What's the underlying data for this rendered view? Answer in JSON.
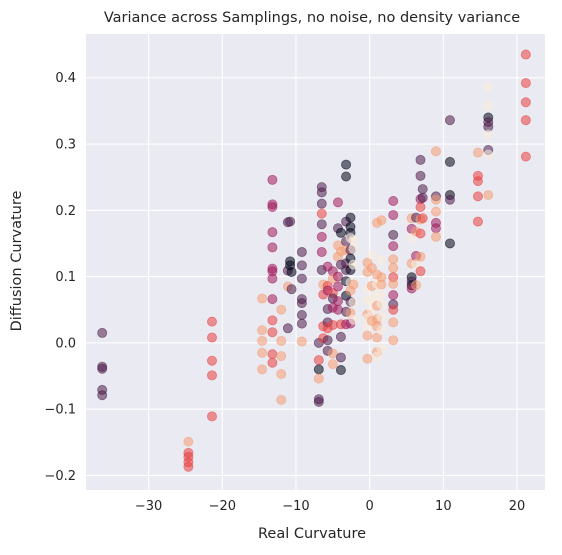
{
  "chart_data": {
    "type": "scatter",
    "title": "Variance across Samplings, no noise, no density variance",
    "xlabel": "Real Curvature",
    "ylabel": "Diffusion Curvature",
    "xlim": [
      -38.5,
      23.8
    ],
    "ylim": [
      -0.222,
      0.466
    ],
    "xticks": [
      -30,
      -20,
      -10,
      0,
      10,
      20
    ],
    "yticks": [
      -0.2,
      -0.1,
      0.0,
      0.1,
      0.2,
      0.3,
      0.4
    ],
    "xtick_labels": [
      "−30",
      "−20",
      "−10",
      "0",
      "10",
      "20"
    ],
    "ytick_labels": [
      "−0.2",
      "−0.1",
      "0.0",
      "0.1",
      "0.2",
      "0.3",
      "0.4"
    ],
    "grid": true,
    "background": "#eaeaf2",
    "grid_color": "#ffffff",
    "marker_opacity": 0.55,
    "palette": [
      "#03051a",
      "#4c1d4b",
      "#a11a5b",
      "#e83f3f",
      "#f69c73",
      "#faebdd"
    ],
    "points": [
      {
        "x": -36.3,
        "y": 0.015,
        "c": 1
      },
      {
        "x": -36.3,
        "y": -0.036,
        "c": 1
      },
      {
        "x": -36.3,
        "y": -0.039,
        "c": 1
      },
      {
        "x": -36.3,
        "y": -0.071,
        "c": 1
      },
      {
        "x": -36.3,
        "y": -0.079,
        "c": 1
      },
      {
        "x": -24.6,
        "y": -0.149,
        "c": 4
      },
      {
        "x": -24.6,
        "y": -0.166,
        "c": 3
      },
      {
        "x": -24.6,
        "y": -0.172,
        "c": 3
      },
      {
        "x": -24.6,
        "y": -0.18,
        "c": 3
      },
      {
        "x": -24.6,
        "y": -0.187,
        "c": 3
      },
      {
        "x": -21.4,
        "y": 0.032,
        "c": 3
      },
      {
        "x": -21.4,
        "y": 0.008,
        "c": 3
      },
      {
        "x": -21.4,
        "y": -0.027,
        "c": 3
      },
      {
        "x": -21.4,
        "y": -0.049,
        "c": 3
      },
      {
        "x": -21.4,
        "y": -0.111,
        "c": 3
      },
      {
        "x": -14.6,
        "y": 0.067,
        "c": 4
      },
      {
        "x": -14.6,
        "y": 0.019,
        "c": 4
      },
      {
        "x": -14.6,
        "y": 0.003,
        "c": 4
      },
      {
        "x": -14.6,
        "y": -0.015,
        "c": 4
      },
      {
        "x": -14.6,
        "y": -0.04,
        "c": 4
      },
      {
        "x": -13.2,
        "y": 0.246,
        "c": 2
      },
      {
        "x": -13.2,
        "y": 0.209,
        "c": 2
      },
      {
        "x": -13.2,
        "y": 0.205,
        "c": 2
      },
      {
        "x": -13.2,
        "y": 0.167,
        "c": 2
      },
      {
        "x": -13.2,
        "y": 0.144,
        "c": 2
      },
      {
        "x": -13.2,
        "y": 0.112,
        "c": 2
      },
      {
        "x": -13.2,
        "y": 0.108,
        "c": 2
      },
      {
        "x": -13.2,
        "y": 0.097,
        "c": 2
      },
      {
        "x": -13.2,
        "y": 0.066,
        "c": 2
      },
      {
        "x": -13.2,
        "y": 0.034,
        "c": 3
      },
      {
        "x": -13.2,
        "y": 0.016,
        "c": 3
      },
      {
        "x": -13.2,
        "y": -0.017,
        "c": 3
      },
      {
        "x": -13.2,
        "y": -0.03,
        "c": 3
      },
      {
        "x": -12.0,
        "y": 0.05,
        "c": 4
      },
      {
        "x": -12.0,
        "y": 0.003,
        "c": 4
      },
      {
        "x": -12.0,
        "y": -0.02,
        "c": 4
      },
      {
        "x": -12.0,
        "y": -0.047,
        "c": 4
      },
      {
        "x": -12.0,
        "y": -0.086,
        "c": 4
      },
      {
        "x": -11.1,
        "y": 0.182,
        "c": 1
      },
      {
        "x": -11.1,
        "y": 0.109,
        "c": 1
      },
      {
        "x": -11.1,
        "y": 0.085,
        "c": 4
      },
      {
        "x": -11.1,
        "y": 0.022,
        "c": 1
      },
      {
        "x": -10.8,
        "y": 0.183,
        "c": 1
      },
      {
        "x": -10.8,
        "y": 0.123,
        "c": 0
      },
      {
        "x": -10.8,
        "y": 0.117,
        "c": 0
      },
      {
        "x": -10.6,
        "y": 0.107,
        "c": 0
      },
      {
        "x": -10.6,
        "y": 0.081,
        "c": 1
      },
      {
        "x": -9.2,
        "y": 0.137,
        "c": 1
      },
      {
        "x": -9.2,
        "y": 0.117,
        "c": 1
      },
      {
        "x": -9.2,
        "y": 0.097,
        "c": 1
      },
      {
        "x": -9.2,
        "y": 0.066,
        "c": 1
      },
      {
        "x": -9.2,
        "y": 0.06,
        "c": 1
      },
      {
        "x": -9.2,
        "y": 0.042,
        "c": 1
      },
      {
        "x": -9.2,
        "y": 0.029,
        "c": 1
      },
      {
        "x": -9.2,
        "y": 0.002,
        "c": 4
      },
      {
        "x": -6.9,
        "y": 0.0,
        "c": 1
      },
      {
        "x": -6.9,
        "y": -0.026,
        "c": 3
      },
      {
        "x": -6.9,
        "y": -0.04,
        "c": 0
      },
      {
        "x": -6.9,
        "y": -0.054,
        "c": 4
      },
      {
        "x": -6.9,
        "y": -0.085,
        "c": 1
      },
      {
        "x": -6.9,
        "y": -0.089,
        "c": 1
      },
      {
        "x": -6.5,
        "y": 0.235,
        "c": 1
      },
      {
        "x": -6.5,
        "y": 0.227,
        "c": 1
      },
      {
        "x": -6.5,
        "y": 0.21,
        "c": 1
      },
      {
        "x": -6.5,
        "y": 0.195,
        "c": 3
      },
      {
        "x": -6.5,
        "y": 0.179,
        "c": 1
      },
      {
        "x": -6.5,
        "y": 0.16,
        "c": 2
      },
      {
        "x": -6.5,
        "y": 0.137,
        "c": 2
      },
      {
        "x": -6.5,
        "y": 0.11,
        "c": 1
      },
      {
        "x": -6.3,
        "y": 0.088,
        "c": 4
      },
      {
        "x": -6.3,
        "y": 0.073,
        "c": 3
      },
      {
        "x": -6.3,
        "y": 0.025,
        "c": 3
      },
      {
        "x": -6.3,
        "y": 0.007,
        "c": 3
      },
      {
        "x": -5.7,
        "y": 0.115,
        "c": 2
      },
      {
        "x": -5.7,
        "y": 0.086,
        "c": 3
      },
      {
        "x": -5.7,
        "y": 0.079,
        "c": 2
      },
      {
        "x": -5.7,
        "y": 0.051,
        "c": 1
      },
      {
        "x": -5.7,
        "y": 0.031,
        "c": 1
      },
      {
        "x": -5.7,
        "y": 0.022,
        "c": 3
      },
      {
        "x": -5.7,
        "y": 0.004,
        "c": 1
      },
      {
        "x": -5.7,
        "y": -0.012,
        "c": 1
      },
      {
        "x": -5.0,
        "y": 0.108,
        "c": 2
      },
      {
        "x": -5.0,
        "y": 0.097,
        "c": 4
      },
      {
        "x": -5.0,
        "y": 0.075,
        "c": 3
      },
      {
        "x": -5.0,
        "y": 0.067,
        "c": 1
      },
      {
        "x": -5.0,
        "y": 0.053,
        "c": 2
      },
      {
        "x": -5.0,
        "y": 0.027,
        "c": 3
      },
      {
        "x": -5.0,
        "y": -0.016,
        "c": 4
      },
      {
        "x": -5.0,
        "y": -0.032,
        "c": 4
      },
      {
        "x": -4.3,
        "y": 0.212,
        "c": 2
      },
      {
        "x": -4.3,
        "y": 0.173,
        "c": 1
      },
      {
        "x": -4.3,
        "y": 0.147,
        "c": 4
      },
      {
        "x": -4.3,
        "y": 0.13,
        "c": 4
      },
      {
        "x": -4.3,
        "y": 0.1,
        "c": 2
      },
      {
        "x": -4.3,
        "y": 0.085,
        "c": 2
      },
      {
        "x": -4.3,
        "y": 0.063,
        "c": 2
      },
      {
        "x": -4.3,
        "y": 0.05,
        "c": 2
      },
      {
        "x": -3.9,
        "y": 0.166,
        "c": 0
      },
      {
        "x": -3.9,
        "y": 0.138,
        "c": 4
      },
      {
        "x": -3.9,
        "y": 0.118,
        "c": 1
      },
      {
        "x": -3.9,
        "y": 0.028,
        "c": 3
      },
      {
        "x": -3.9,
        "y": 0.009,
        "c": 1
      },
      {
        "x": -3.9,
        "y": -0.022,
        "c": 1
      },
      {
        "x": -3.9,
        "y": -0.041,
        "c": 0
      },
      {
        "x": -3.2,
        "y": 0.269,
        "c": 0
      },
      {
        "x": -3.2,
        "y": 0.251,
        "c": 0
      },
      {
        "x": -3.2,
        "y": 0.183,
        "c": 1
      },
      {
        "x": -3.2,
        "y": 0.153,
        "c": 1
      },
      {
        "x": -3.2,
        "y": 0.14,
        "c": 4
      },
      {
        "x": -3.2,
        "y": 0.12,
        "c": 1
      },
      {
        "x": -3.2,
        "y": 0.11,
        "c": 1
      },
      {
        "x": -3.2,
        "y": 0.093,
        "c": 0
      },
      {
        "x": -3.2,
        "y": 0.071,
        "c": 0
      },
      {
        "x": -3.2,
        "y": 0.047,
        "c": 1
      },
      {
        "x": -3.2,
        "y": 0.028,
        "c": 2
      },
      {
        "x": -2.6,
        "y": 0.189,
        "c": 0
      },
      {
        "x": -2.6,
        "y": 0.175,
        "c": 0
      },
      {
        "x": -2.6,
        "y": 0.166,
        "c": 0
      },
      {
        "x": -2.6,
        "y": 0.158,
        "c": 5
      },
      {
        "x": -2.6,
        "y": 0.14,
        "c": 1
      },
      {
        "x": -2.6,
        "y": 0.127,
        "c": 0
      },
      {
        "x": -2.6,
        "y": 0.11,
        "c": 0
      },
      {
        "x": -2.6,
        "y": 0.091,
        "c": 5
      },
      {
        "x": -2.6,
        "y": 0.079,
        "c": 4
      },
      {
        "x": -2.6,
        "y": 0.062,
        "c": 1
      },
      {
        "x": -2.6,
        "y": 0.045,
        "c": 4
      },
      {
        "x": -2.6,
        "y": 0.029,
        "c": 2
      },
      {
        "x": -2.2,
        "y": 0.155,
        "c": 5
      },
      {
        "x": -2.2,
        "y": 0.142,
        "c": 5
      },
      {
        "x": -2.2,
        "y": 0.118,
        "c": 5
      },
      {
        "x": -2.2,
        "y": 0.088,
        "c": 4
      },
      {
        "x": -2.2,
        "y": 0.061,
        "c": 5
      },
      {
        "x": -2.2,
        "y": 0.035,
        "c": 5
      },
      {
        "x": -0.3,
        "y": 0.121,
        "c": 4
      },
      {
        "x": -0.3,
        "y": 0.107,
        "c": 4
      },
      {
        "x": -0.3,
        "y": 0.081,
        "c": 5
      },
      {
        "x": -0.3,
        "y": 0.064,
        "c": 5
      },
      {
        "x": -0.3,
        "y": 0.043,
        "c": 4
      },
      {
        "x": -0.3,
        "y": 0.037,
        "c": 5
      },
      {
        "x": -0.3,
        "y": 0.025,
        "c": 5
      },
      {
        "x": -0.3,
        "y": 0.011,
        "c": 4
      },
      {
        "x": -0.3,
        "y": -0.024,
        "c": 4
      },
      {
        "x": 0.3,
        "y": 0.133,
        "c": 5
      },
      {
        "x": 0.3,
        "y": 0.113,
        "c": 4
      },
      {
        "x": 0.3,
        "y": 0.086,
        "c": 4
      },
      {
        "x": 0.3,
        "y": 0.066,
        "c": 5
      },
      {
        "x": 0.3,
        "y": 0.05,
        "c": 5
      },
      {
        "x": 0.3,
        "y": 0.033,
        "c": 4
      },
      {
        "x": 1.0,
        "y": 0.181,
        "c": 4
      },
      {
        "x": 1.0,
        "y": 0.103,
        "c": 4
      },
      {
        "x": 1.0,
        "y": 0.089,
        "c": 5
      },
      {
        "x": 1.0,
        "y": 0.072,
        "c": 5
      },
      {
        "x": 1.0,
        "y": 0.056,
        "c": 4
      },
      {
        "x": 1.0,
        "y": 0.036,
        "c": 4
      },
      {
        "x": 1.0,
        "y": 0.025,
        "c": 4
      },
      {
        "x": 1.0,
        "y": 0.008,
        "c": 4
      },
      {
        "x": 1.0,
        "y": -0.014,
        "c": 4
      },
      {
        "x": 1.0,
        "y": -0.021,
        "c": 5
      },
      {
        "x": 1.6,
        "y": 0.185,
        "c": 4
      },
      {
        "x": 1.6,
        "y": 0.125,
        "c": 5
      },
      {
        "x": 1.6,
        "y": 0.099,
        "c": 4
      },
      {
        "x": 1.6,
        "y": 0.088,
        "c": 4
      },
      {
        "x": 1.6,
        "y": 0.074,
        "c": 5
      },
      {
        "x": 1.6,
        "y": 0.059,
        "c": 5
      },
      {
        "x": 1.6,
        "y": 0.04,
        "c": 5
      },
      {
        "x": 1.6,
        "y": 0.019,
        "c": 5
      },
      {
        "x": 1.6,
        "y": -0.008,
        "c": 5
      },
      {
        "x": 3.2,
        "y": 0.214,
        "c": 2
      },
      {
        "x": 3.2,
        "y": 0.193,
        "c": 2
      },
      {
        "x": 3.2,
        "y": 0.163,
        "c": 1
      },
      {
        "x": 3.2,
        "y": 0.146,
        "c": 2
      },
      {
        "x": 3.2,
        "y": 0.126,
        "c": 4
      },
      {
        "x": 3.2,
        "y": 0.113,
        "c": 4
      },
      {
        "x": 3.2,
        "y": 0.099,
        "c": 3
      },
      {
        "x": 3.2,
        "y": 0.089,
        "c": 4
      },
      {
        "x": 3.2,
        "y": 0.072,
        "c": 2
      },
      {
        "x": 3.2,
        "y": 0.058,
        "c": 1
      },
      {
        "x": 3.2,
        "y": 0.05,
        "c": 3
      },
      {
        "x": 3.2,
        "y": 0.031,
        "c": 4
      },
      {
        "x": 3.2,
        "y": 0.004,
        "c": 4
      },
      {
        "x": 5.7,
        "y": 0.188,
        "c": 4
      },
      {
        "x": 5.7,
        "y": 0.172,
        "c": 2
      },
      {
        "x": 5.7,
        "y": 0.158,
        "c": 5
      },
      {
        "x": 5.7,
        "y": 0.12,
        "c": 4
      },
      {
        "x": 5.7,
        "y": 0.099,
        "c": 0
      },
      {
        "x": 5.7,
        "y": 0.093,
        "c": 1
      },
      {
        "x": 5.7,
        "y": 0.087,
        "c": 0
      },
      {
        "x": 5.7,
        "y": 0.082,
        "c": 2
      },
      {
        "x": 6.3,
        "y": 0.189,
        "c": 1
      },
      {
        "x": 6.3,
        "y": 0.168,
        "c": 4
      },
      {
        "x": 6.3,
        "y": 0.131,
        "c": 2
      },
      {
        "x": 6.3,
        "y": 0.119,
        "c": 5
      },
      {
        "x": 6.3,
        "y": 0.087,
        "c": 4
      },
      {
        "x": 6.9,
        "y": 0.276,
        "c": 1
      },
      {
        "x": 6.9,
        "y": 0.252,
        "c": 1
      },
      {
        "x": 6.9,
        "y": 0.217,
        "c": 2
      },
      {
        "x": 6.9,
        "y": 0.205,
        "c": 3
      },
      {
        "x": 6.9,
        "y": 0.186,
        "c": 4
      },
      {
        "x": 6.9,
        "y": 0.165,
        "c": 3
      },
      {
        "x": 6.9,
        "y": 0.13,
        "c": 4
      },
      {
        "x": 6.9,
        "y": 0.108,
        "c": 3
      },
      {
        "x": 7.2,
        "y": 0.232,
        "c": 1
      },
      {
        "x": 7.2,
        "y": 0.219,
        "c": 1
      },
      {
        "x": 7.2,
        "y": 0.188,
        "c": 3
      },
      {
        "x": 9.0,
        "y": 0.289,
        "c": 4
      },
      {
        "x": 9.0,
        "y": 0.221,
        "c": 1
      },
      {
        "x": 9.0,
        "y": 0.216,
        "c": 4
      },
      {
        "x": 9.0,
        "y": 0.198,
        "c": 4
      },
      {
        "x": 9.0,
        "y": 0.181,
        "c": 2
      },
      {
        "x": 9.0,
        "y": 0.173,
        "c": 2
      },
      {
        "x": 9.0,
        "y": 0.16,
        "c": 4
      },
      {
        "x": 10.9,
        "y": 0.336,
        "c": 1
      },
      {
        "x": 10.9,
        "y": 0.273,
        "c": 0
      },
      {
        "x": 10.9,
        "y": 0.223,
        "c": 0
      },
      {
        "x": 10.9,
        "y": 0.216,
        "c": 1
      },
      {
        "x": 10.9,
        "y": 0.15,
        "c": 0
      },
      {
        "x": 14.7,
        "y": 0.287,
        "c": 4
      },
      {
        "x": 14.7,
        "y": 0.252,
        "c": 3
      },
      {
        "x": 14.7,
        "y": 0.244,
        "c": 3
      },
      {
        "x": 14.7,
        "y": 0.221,
        "c": 3
      },
      {
        "x": 14.7,
        "y": 0.183,
        "c": 3
      },
      {
        "x": 16.1,
        "y": 0.386,
        "c": 5
      },
      {
        "x": 16.1,
        "y": 0.358,
        "c": 5
      },
      {
        "x": 16.1,
        "y": 0.34,
        "c": 0
      },
      {
        "x": 16.1,
        "y": 0.333,
        "c": 1
      },
      {
        "x": 16.1,
        "y": 0.326,
        "c": 1
      },
      {
        "x": 16.1,
        "y": 0.314,
        "c": 5
      },
      {
        "x": 16.1,
        "y": 0.291,
        "c": 1
      },
      {
        "x": 16.1,
        "y": 0.284,
        "c": 5
      },
      {
        "x": 16.1,
        "y": 0.223,
        "c": 4
      },
      {
        "x": 21.2,
        "y": 0.435,
        "c": 3
      },
      {
        "x": 21.2,
        "y": 0.392,
        "c": 3
      },
      {
        "x": 21.2,
        "y": 0.363,
        "c": 3
      },
      {
        "x": 21.2,
        "y": 0.336,
        "c": 3
      },
      {
        "x": 21.2,
        "y": 0.281,
        "c": 3
      }
    ]
  }
}
